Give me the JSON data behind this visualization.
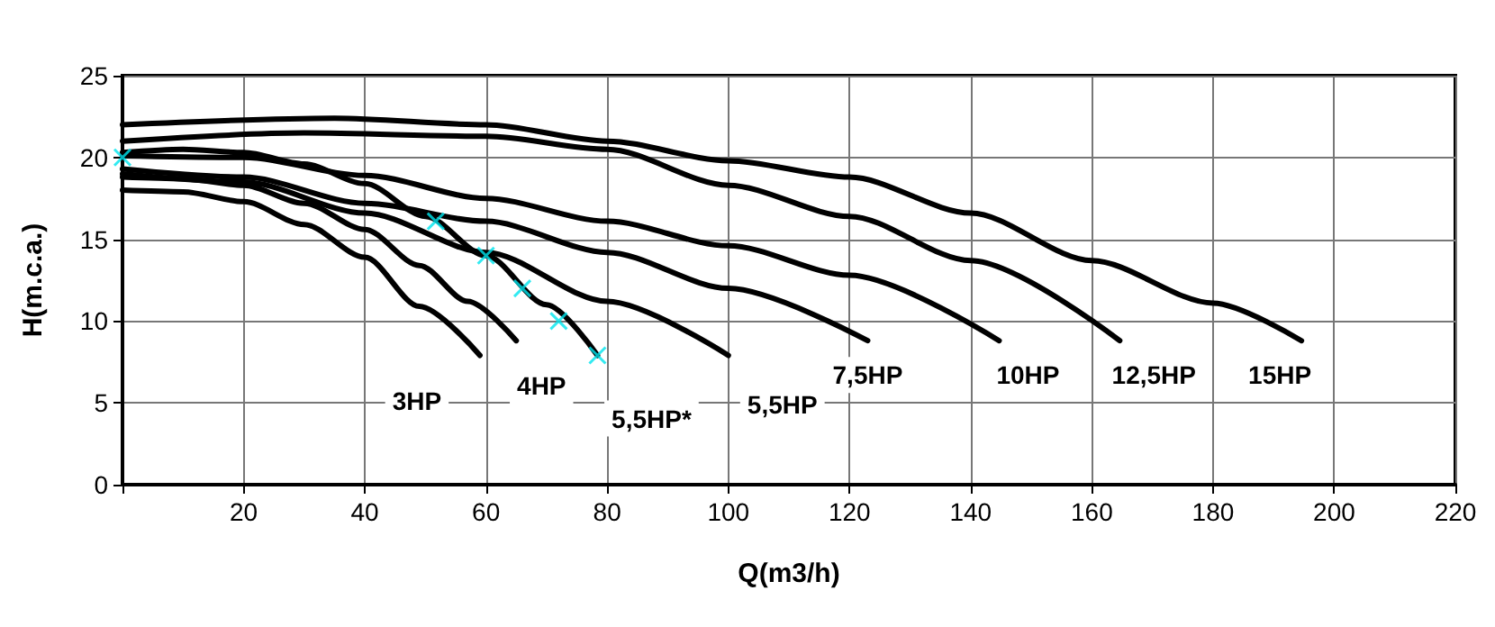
{
  "chart_data": {
    "type": "line",
    "xlabel": "Q(m3/h)",
    "ylabel": "H(m.c.a.)",
    "xlim": [
      0,
      220
    ],
    "xticks": [
      {
        "value": 0,
        "label": null
      },
      20,
      40,
      60,
      80,
      100,
      120,
      140,
      160,
      180,
      200,
      220
    ],
    "ylim": [
      0,
      25
    ],
    "yticks": [
      0,
      5,
      10,
      15,
      20,
      25
    ],
    "grid": true,
    "legend": false,
    "marker": "none",
    "line_style": "solid",
    "series": [
      {
        "name": "3HP",
        "color": "#000000",
        "x": [
          0,
          10,
          20,
          30,
          40,
          49,
          59
        ],
        "values": [
          18,
          17.9,
          17.3,
          15.9,
          13.9,
          10.9,
          7.9
        ]
      },
      {
        "name": "4HP",
        "color": "#000000",
        "x": [
          0,
          10,
          20,
          30,
          40,
          49,
          57,
          65
        ],
        "values": [
          18.8,
          18.7,
          18.3,
          17.2,
          15.6,
          13.4,
          11.2,
          8.8
        ]
      },
      {
        "name": "5,5HP*",
        "color": "#000000",
        "x": [
          0,
          10,
          20,
          30,
          40,
          50,
          60,
          70,
          78.4
        ],
        "values": [
          20.3,
          20.5,
          20.3,
          19.6,
          18.4,
          16.4,
          14,
          11,
          7.9
        ]
      },
      {
        "name": "5,5HP",
        "color": "#000000",
        "x": [
          0,
          20,
          40,
          60,
          80,
          100
        ],
        "values": [
          19,
          18.5,
          16.6,
          14.2,
          11.2,
          7.9
        ]
      },
      {
        "name": "7,5HP",
        "color": "#000000",
        "x": [
          0,
          20,
          40,
          60,
          80,
          100,
          123
        ],
        "values": [
          19.3,
          18.8,
          17.2,
          16.1,
          14.2,
          12,
          8.8
        ]
      },
      {
        "name": "10HP",
        "color": "#000000",
        "x": [
          0,
          20,
          40,
          60,
          80,
          100,
          120,
          144.7
        ],
        "values": [
          20.1,
          20,
          18.9,
          17.5,
          16.1,
          14.6,
          12.8,
          8.8
        ]
      },
      {
        "name": "12,5HP",
        "color": "#000000",
        "x": [
          0,
          30,
          60,
          80,
          100,
          120,
          140,
          164.6
        ],
        "values": [
          21,
          21.5,
          21.3,
          20.5,
          18.3,
          16.4,
          13.7,
          8.8
        ]
      },
      {
        "name": "15HP",
        "color": "#000000",
        "x": [
          0,
          35,
          60,
          80,
          100,
          120,
          140,
          160,
          180,
          194.6
        ],
        "values": [
          22,
          22.4,
          22,
          21,
          19.8,
          18.8,
          16.6,
          13.7,
          11.1,
          8.8
        ]
      },
      {
        "type": "scatter",
        "color": "#00e5ee",
        "marker": "cross",
        "x": [
          0,
          51.7,
          60,
          66,
          72,
          78.4
        ],
        "values": [
          20,
          16.1,
          14,
          12,
          10,
          7.9
        ]
      }
    ]
  }
}
